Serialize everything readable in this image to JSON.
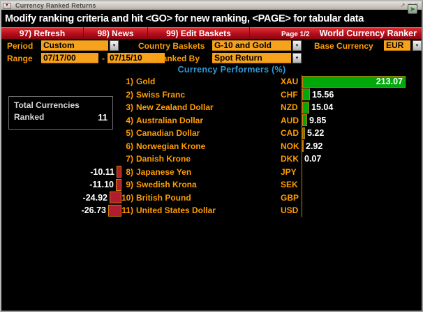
{
  "window": {
    "title": "Currency Ranked Returns",
    "menu_button_icon": "▼",
    "restore_icon": "↗",
    "maximize_icon": "□",
    "close_icon": "✕"
  },
  "message_bar": {
    "text": "Modify ranking criteria and hit <GO> for new ranking, <PAGE> for tabular data",
    "icon": "➤"
  },
  "menu_bar": {
    "items": [
      {
        "label": "97) Refresh"
      },
      {
        "label": "98) News"
      },
      {
        "label": "99) Edit Baskets"
      }
    ],
    "page_indicator": "Page 1/2",
    "app_title": "World Currency Ranker"
  },
  "controls": {
    "period_label": "Period",
    "period_value": "Custom",
    "country_baskets_label": "Country Baskets",
    "country_baskets_value": "G-10 and Gold",
    "base_currency_label": "Base Currency",
    "base_currency_value": "EUR",
    "range_label": "Range",
    "range_start": "07/17/00",
    "range_separator": "-",
    "range_end": "07/15/10",
    "ranked_by_label": "Ranked By",
    "ranked_by_value": "Spot Return",
    "dropdown_icon": "▼"
  },
  "summary_box": {
    "line1": "Total Currencies",
    "line2_label": "Ranked",
    "count": "11"
  },
  "chart_data": {
    "type": "bar",
    "orientation": "horizontal",
    "title": "Currency Performers (%)",
    "categories": [
      "Gold",
      "Swiss Franc",
      "New Zealand Dollar",
      "Australian Dollar",
      "Canadian Dollar",
      "Norwegian Krone",
      "Danish Krone",
      "Japanese Yen",
      "Swedish Krona",
      "British Pound",
      "United States Dollar"
    ],
    "tickers": [
      "XAU",
      "CHF",
      "NZD",
      "AUD",
      "CAD",
      "NOK",
      "DKK",
      "JPY",
      "SEK",
      "GBP",
      "USD"
    ],
    "values": [
      213.07,
      15.56,
      15.04,
      9.85,
      5.22,
      2.92,
      0.07,
      -10.11,
      -11.1,
      -24.92,
      -26.73
    ],
    "xlim": [
      -26.73,
      213.07
    ],
    "positive_color": "#00a80a",
    "negative_color": "#b01e2e",
    "axis_color": "#bf7d08",
    "value_label_color": "#ffffff",
    "category_label_color": "#ff9d00"
  }
}
